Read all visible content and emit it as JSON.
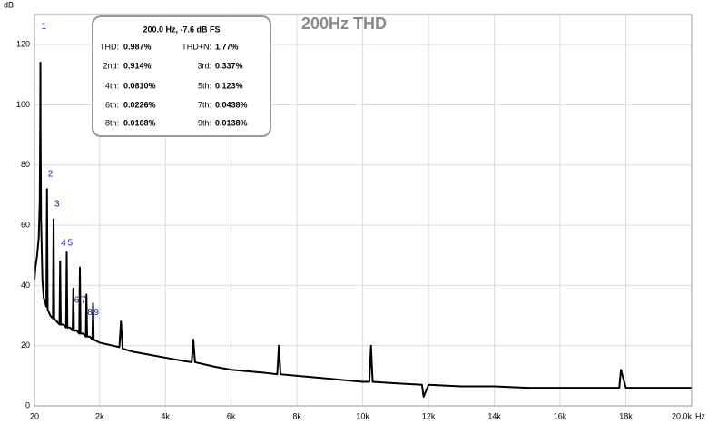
{
  "chart_data": {
    "type": "line",
    "title": "200Hz THD",
    "y_label": "dB",
    "x_label": "Hz",
    "xlim": [
      20,
      20000
    ],
    "ylim": [
      0,
      130
    ],
    "xticks": [
      20,
      {
        "value": 2000,
        "label": "2k"
      },
      {
        "value": 4000,
        "label": "4k"
      },
      {
        "value": 6000,
        "label": "6k"
      },
      {
        "value": 8000,
        "label": "8k"
      },
      {
        "value": 10000,
        "label": "10k"
      },
      {
        "value": 12000,
        "label": "12k"
      },
      {
        "value": 14000,
        "label": "14k"
      },
      {
        "value": 16000,
        "label": "16k"
      },
      {
        "value": 18000,
        "label": "18k"
      },
      {
        "value": 20000,
        "label": "20.0k"
      }
    ],
    "yticks": [
      0,
      20,
      40,
      60,
      80,
      100,
      120
    ],
    "grid": true,
    "series": [
      {
        "color": "#000000",
        "x": [
          20,
          50,
          100,
          150,
          180,
          195,
          200,
          205,
          220,
          260,
          300,
          380,
          400,
          420,
          500,
          580,
          600,
          620,
          700,
          780,
          800,
          820,
          900,
          980,
          1000,
          1020,
          1100,
          1180,
          1200,
          1220,
          1300,
          1380,
          1400,
          1420,
          1500,
          1580,
          1600,
          1620,
          1700,
          1780,
          1800,
          1820,
          2000,
          2400,
          2600,
          2650,
          2700,
          3000,
          3500,
          4000,
          4500,
          4800,
          4850,
          4900,
          5500,
          6000,
          6500,
          7000,
          7400,
          7450,
          7500,
          8000,
          8500,
          9000,
          9500,
          10000,
          10200,
          10250,
          10300,
          11000,
          11800,
          11850,
          12000,
          13000,
          14000,
          15000,
          16000,
          17000,
          17800,
          17850,
          18000,
          19000,
          20000
        ],
        "values": [
          42,
          46,
          50,
          56,
          68,
          95,
          114,
          92,
          62,
          42,
          36,
          33,
          72,
          32,
          30,
          29,
          62,
          29,
          28,
          27,
          48,
          27,
          27,
          26,
          51,
          26,
          26,
          25,
          39,
          25,
          25,
          24,
          46,
          24,
          24,
          23,
          37,
          23,
          23,
          22,
          34,
          22,
          21,
          20,
          19.5,
          28,
          19,
          18,
          17,
          16,
          15,
          14.5,
          22,
          14.5,
          13,
          12,
          11.5,
          11,
          10.5,
          20,
          10.5,
          10,
          9.5,
          9,
          8.5,
          8,
          8,
          20,
          8,
          7.5,
          7,
          3,
          7,
          6.5,
          6.5,
          6,
          6,
          6,
          6,
          12,
          6,
          6,
          6
        ]
      }
    ],
    "annotations": [
      {
        "text": "1",
        "x": 200,
        "y": 126
      },
      {
        "text": "2",
        "x": 400,
        "y": 77
      },
      {
        "text": "3",
        "x": 600,
        "y": 67
      },
      {
        "text": "4",
        "x": 800,
        "y": 54
      },
      {
        "text": "5",
        "x": 1000,
        "y": 54
      },
      {
        "text": "6",
        "x": 1200,
        "y": 35
      },
      {
        "text": "7",
        "x": 1400,
        "y": 35
      },
      {
        "text": "8",
        "x": 1600,
        "y": 31
      },
      {
        "text": "9",
        "x": 1800,
        "y": 31
      }
    ],
    "info_box": {
      "title": "200.0 Hz, -7.6 dB FS",
      "rows": [
        [
          "THD:",
          "0.987%",
          "THD+N:",
          "1.77%"
        ],
        [
          "2nd:",
          "0.914%",
          "3rd:",
          "0.337%"
        ],
        [
          "4th:",
          "0.0810%",
          "5th:",
          "0.123%"
        ],
        [
          "6th:",
          "0.0226%",
          "7th:",
          "0.0438%"
        ],
        [
          "8th:",
          "0.0168%",
          "9th:",
          "0.0138%"
        ]
      ]
    }
  }
}
